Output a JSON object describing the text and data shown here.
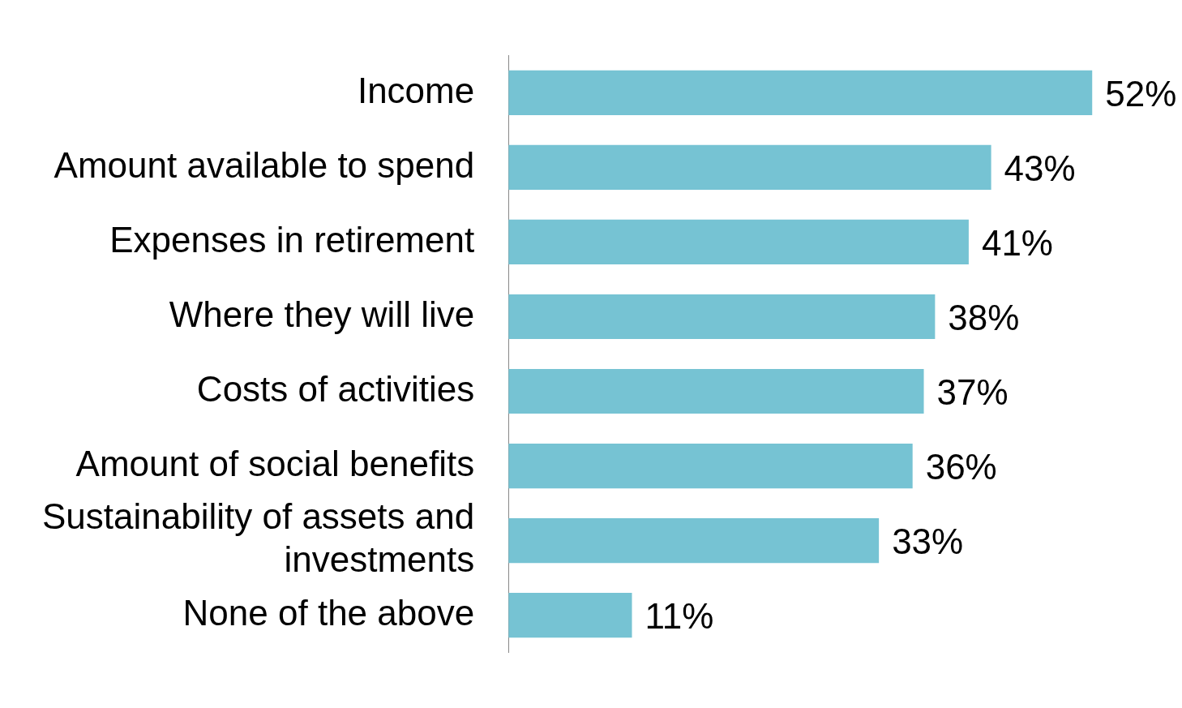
{
  "chart_data": {
    "type": "bar",
    "orientation": "horizontal",
    "categories": [
      "Income",
      "Amount available to spend",
      "Expenses in retirement",
      "Where they will live",
      "Costs of activities",
      "Amount of social benefits",
      "Sustainability of assets and investments",
      "None of the above"
    ],
    "values": [
      52,
      43,
      41,
      38,
      37,
      36,
      33,
      11
    ],
    "value_labels": [
      "52%",
      "43%",
      "41%",
      "38%",
      "37%",
      "36%",
      "33%",
      "11%"
    ],
    "color": "#76c3d3",
    "tick_labels": "y",
    "grid": false,
    "legend": false
  }
}
